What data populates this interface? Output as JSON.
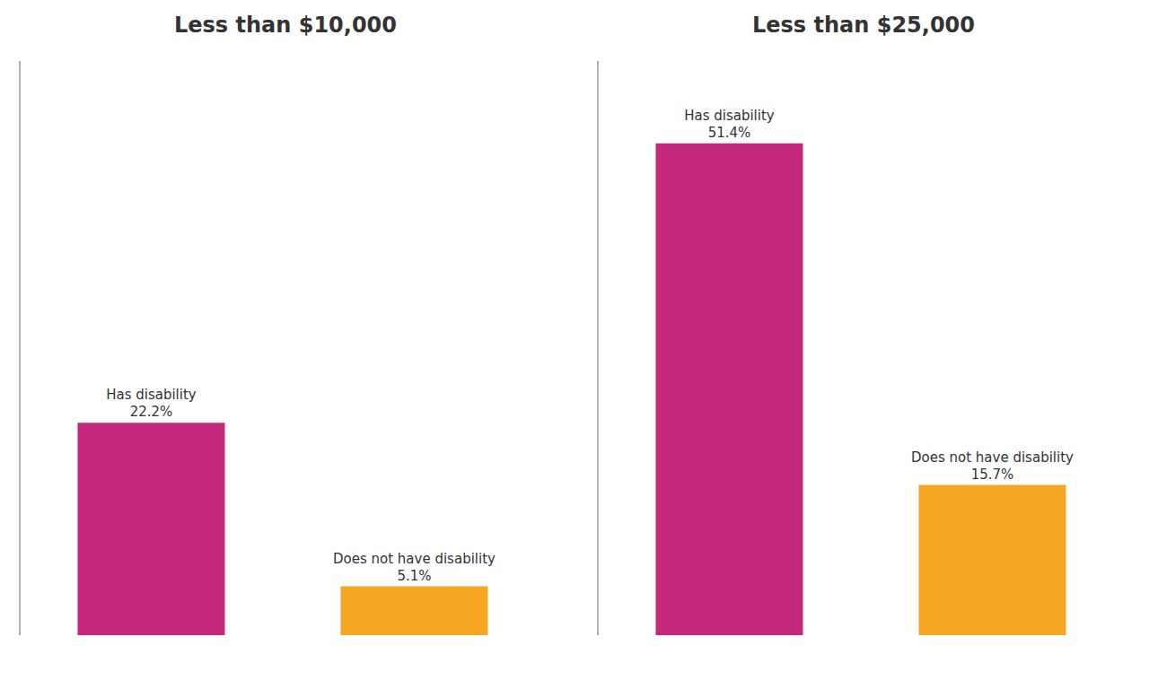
{
  "chart_data": [
    {
      "type": "bar",
      "title": "Less than $10,000",
      "categories": [
        "Has disability",
        "Does not have disability"
      ],
      "values": [
        22.2,
        5.1
      ],
      "value_labels": [
        "22.2%",
        "5.1%"
      ],
      "colors": [
        "#C4287A",
        "#F5A623"
      ],
      "ylim": [
        0,
        60
      ],
      "data_labels": true,
      "tick_labels": false
    },
    {
      "type": "bar",
      "title": "Less than $25,000",
      "categories": [
        "Has disability",
        "Does not have disability"
      ],
      "values": [
        51.4,
        15.7
      ],
      "value_labels": [
        "51.4%",
        "15.7%"
      ],
      "colors": [
        "#C4287A",
        "#F5A623"
      ],
      "ylim": [
        0,
        60
      ],
      "data_labels": true,
      "tick_labels": false
    }
  ]
}
